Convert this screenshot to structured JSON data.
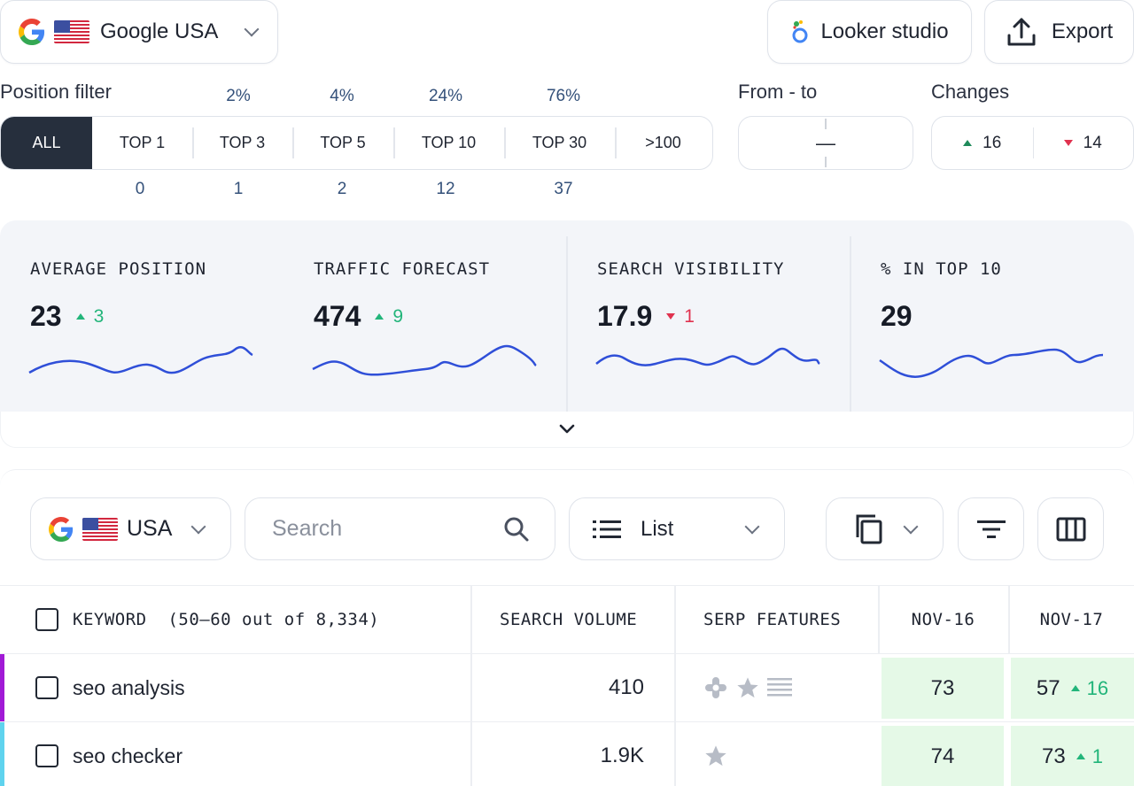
{
  "top_bar": {
    "engine_label": "Google USA",
    "looker_label": "Looker studio",
    "export_label": "Export"
  },
  "filters": {
    "position_label": "Position filter",
    "range_label": "From - to",
    "changes_label": "Changes",
    "range_value": "—",
    "position_items": [
      {
        "label": "ALL",
        "pct": "",
        "count": "",
        "active": true
      },
      {
        "label": "TOP 1",
        "pct": "",
        "count": "0"
      },
      {
        "label": "TOP 3",
        "pct": "2%",
        "count": "1"
      },
      {
        "label": "TOP 5",
        "pct": "4%",
        "count": "2"
      },
      {
        "label": "TOP 10",
        "pct": "24%",
        "count": "12"
      },
      {
        "label": "TOP 30",
        "pct": "76%",
        "count": "37"
      },
      {
        "label": ">100",
        "pct": "",
        "count": ""
      }
    ],
    "changes": {
      "up": "16",
      "down": "14"
    }
  },
  "metrics": [
    {
      "title": "AVERAGE POSITION",
      "value": "23",
      "delta": "3",
      "direction": "up"
    },
    {
      "title": "TRAFFIC FORECAST",
      "value": "474",
      "delta": "9",
      "direction": "up"
    },
    {
      "title": "SEARCH VISIBILITY",
      "value": "17.9",
      "delta": "1",
      "direction": "down"
    },
    {
      "title": "% IN TOP 10",
      "value": "29",
      "delta": "",
      "direction": "none"
    }
  ],
  "toolbar": {
    "country_label": "USA",
    "search_placeholder": "Search",
    "view_label": "List"
  },
  "table": {
    "headers": {
      "keyword": "KEYWORD  (50–60 out of 8,334)",
      "volume": "SEARCH VOLUME",
      "serp": "SERP FEATURES",
      "date1": "NOV-16",
      "date2": "NOV-17"
    },
    "rows": [
      {
        "keyword": "seo analysis",
        "volume": "410",
        "serp": [
          "puzzle-icon",
          "star-icon",
          "list-icon"
        ],
        "nov16": "73",
        "nov17": "57",
        "change": "16",
        "accent": "#a11ad6"
      },
      {
        "keyword": "seo checker",
        "volume": "1.9K",
        "serp": [
          "star-icon"
        ],
        "nov16": "74",
        "nov17": "73",
        "change": "1",
        "accent": "#5fd3ee"
      }
    ]
  },
  "colors": {
    "accent_dark": "#262f3d",
    "up": "#22b57a",
    "down": "#e0324f",
    "spark": "#2f4fd8",
    "positive_cell": "#e5f9e7"
  }
}
